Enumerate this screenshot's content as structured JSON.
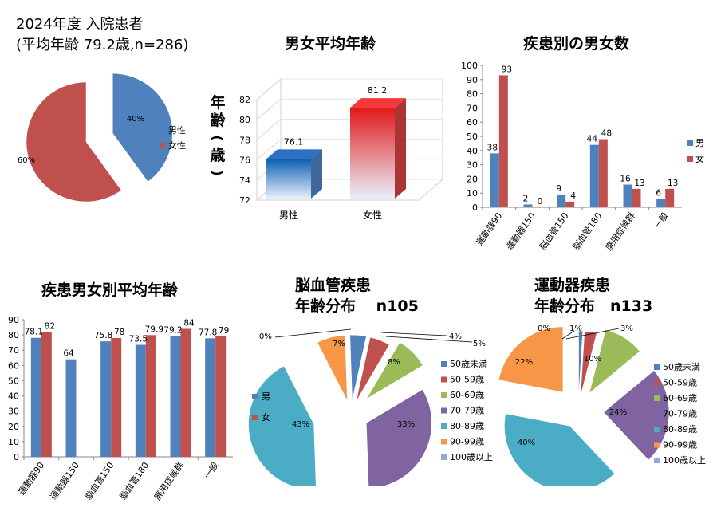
{
  "title_lines": [
    "2024年度 入院患者",
    "(平均年齢 79.2歳,n=286)"
  ],
  "colors": {
    "male": "#4F81BD",
    "female": "#C0504D",
    "age": [
      "#4F81BD",
      "#C0504D",
      "#9BBB59",
      "#8064A2",
      "#4BACC6",
      "#F79646",
      "#93A9D7"
    ]
  },
  "chart_data": [
    {
      "id": "overall",
      "type": "pie",
      "labels": [
        "男性",
        "女性"
      ],
      "values": [
        40,
        60
      ],
      "value_labels": [
        "40%",
        "60%"
      ]
    },
    {
      "id": "avg_age",
      "type": "bar",
      "title": "男女平均年齢",
      "ylabel_chars": [
        "年",
        "齢",
        "(",
        "歳",
        ")"
      ],
      "categories": [
        "男性",
        "女性"
      ],
      "values": [
        76.1,
        81.2
      ],
      "value_labels": [
        "76.1",
        "81.2"
      ],
      "ylim": [
        72,
        82
      ],
      "yticks": [
        "72",
        "74",
        "76",
        "78",
        "80",
        "82"
      ]
    },
    {
      "id": "counts",
      "type": "bar",
      "title": "疾患別の男女数",
      "categories": [
        "運動器90",
        "運動器150",
        "脳血管150",
        "脳血管180",
        "廃用症候群",
        "一般"
      ],
      "series": [
        {
          "name": "男",
          "values": [
            38,
            2,
            9,
            44,
            16,
            6
          ],
          "labels": [
            "38",
            "2",
            "9",
            "44",
            "16",
            "6"
          ]
        },
        {
          "name": "女",
          "values": [
            93,
            0,
            4,
            48,
            13,
            13
          ],
          "labels": [
            "93",
            "0",
            "4",
            "48",
            "13",
            "13"
          ]
        }
      ],
      "ylim": [
        0,
        100
      ],
      "yticks": [
        "0",
        "10",
        "20",
        "30",
        "40",
        "50",
        "60",
        "70",
        "80",
        "90",
        "100"
      ]
    },
    {
      "id": "avg_age_by_disease",
      "type": "bar",
      "title": "疾患男女別平均年齢",
      "categories": [
        "運動器90",
        "運動器150",
        "脳血管150",
        "脳血管180",
        "廃用症候群",
        "一般"
      ],
      "series": [
        {
          "values": [
            78.1,
            64,
            75.8,
            73.5,
            79.2,
            77.8
          ],
          "labels": [
            "78.1",
            "64",
            "75.8",
            "73.5",
            "79.2",
            "77.8"
          ]
        },
        {
          "values": [
            82,
            null,
            78,
            79.9,
            84,
            79
          ],
          "labels": [
            "82",
            "",
            "78",
            "79.9",
            "84",
            "79"
          ]
        }
      ],
      "ylim": [
        0,
        90
      ],
      "yticks": [
        "0",
        "10",
        "20",
        "30",
        "40",
        "50",
        "60",
        "70",
        "80",
        "90"
      ],
      "legend": [
        "男",
        "女"
      ]
    },
    {
      "id": "stroke",
      "type": "pie",
      "title_lines": [
        "脳血管疾患",
        "年齢分布　 n105"
      ],
      "labels": [
        "50歳未満",
        "50-59歳",
        "60-69歳",
        "70-79歳",
        "80-89歳",
        "90-99歳",
        "100歳以上"
      ],
      "values": [
        4,
        5,
        8,
        33,
        43,
        7,
        0
      ],
      "value_labels": [
        "4%",
        "5%",
        "8%",
        "33%",
        "43%",
        "7%",
        "0%"
      ]
    },
    {
      "id": "ortho",
      "type": "pie",
      "title_lines": [
        "運動器疾患",
        "年齢分布　n133"
      ],
      "labels": [
        "50歳未満",
        "50-59歳",
        "60-69歳",
        "70-79歳",
        "80-89歳",
        "90-99歳",
        "100歳以上"
      ],
      "values": [
        1,
        3,
        10,
        24,
        40,
        22,
        0
      ],
      "value_labels": [
        "1%",
        "3%",
        "10%",
        "24%",
        "40%",
        "22%",
        "0%"
      ]
    }
  ]
}
